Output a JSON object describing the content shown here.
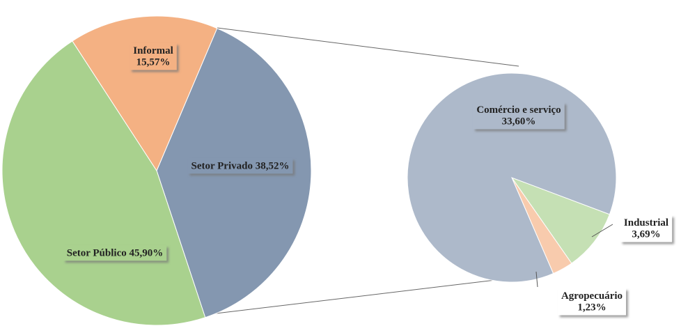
{
  "chart_data": [
    {
      "type": "pie",
      "categories": [
        "Setor Privado",
        "Setor Público",
        "Informal"
      ],
      "values": [
        38.52,
        45.9,
        15.57
      ],
      "value_labels": [
        "38,52%",
        "45,90%",
        "15,57%"
      ],
      "colors": [
        "#8497b0",
        "#a9d18e",
        "#f4b183"
      ]
    },
    {
      "type": "pie",
      "categories": [
        "Industrial",
        "Agropecuário",
        "Comércio e serviço"
      ],
      "values": [
        3.69,
        1.23,
        33.6
      ],
      "value_labels": [
        "3,69%",
        "1,23%",
        "33,60%"
      ],
      "colors": [
        "#c5e0b4",
        "#f8cbad",
        "#adb9ca"
      ]
    }
  ]
}
